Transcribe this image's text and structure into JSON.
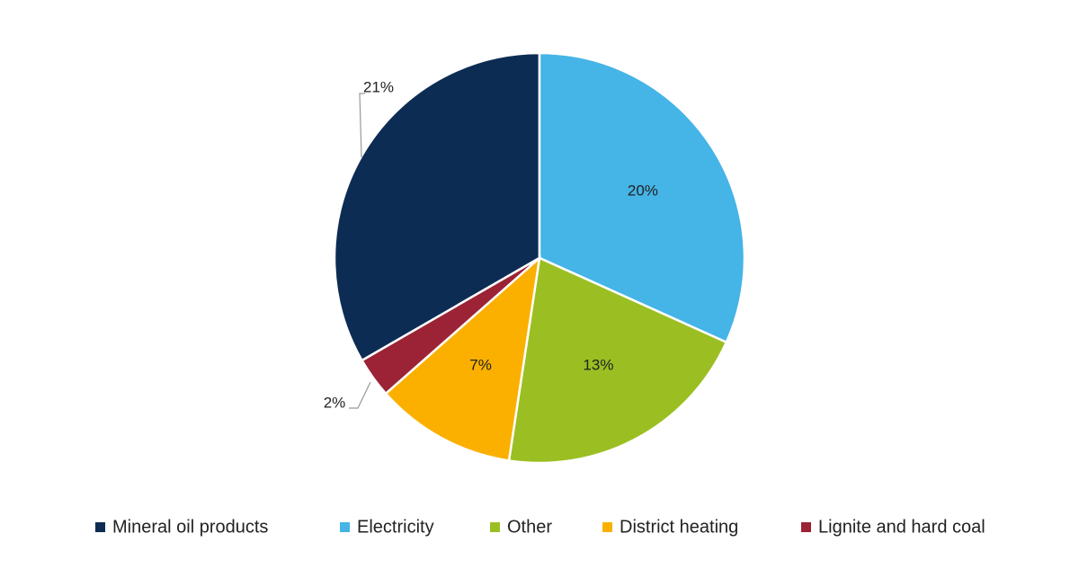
{
  "chart_data": {
    "type": "pie",
    "categories": [
      "Mineral oil products",
      "Electricity",
      "Other",
      "District heating",
      "Lignite and hard coal"
    ],
    "values": [
      21,
      20,
      13,
      7,
      2
    ],
    "value_labels": [
      "21%",
      "20%",
      "13%",
      "7%",
      "2%"
    ],
    "colors": [
      "#0d2c54",
      "#45b4e6",
      "#9bbf22",
      "#fbb000",
      "#9b2335"
    ]
  }
}
